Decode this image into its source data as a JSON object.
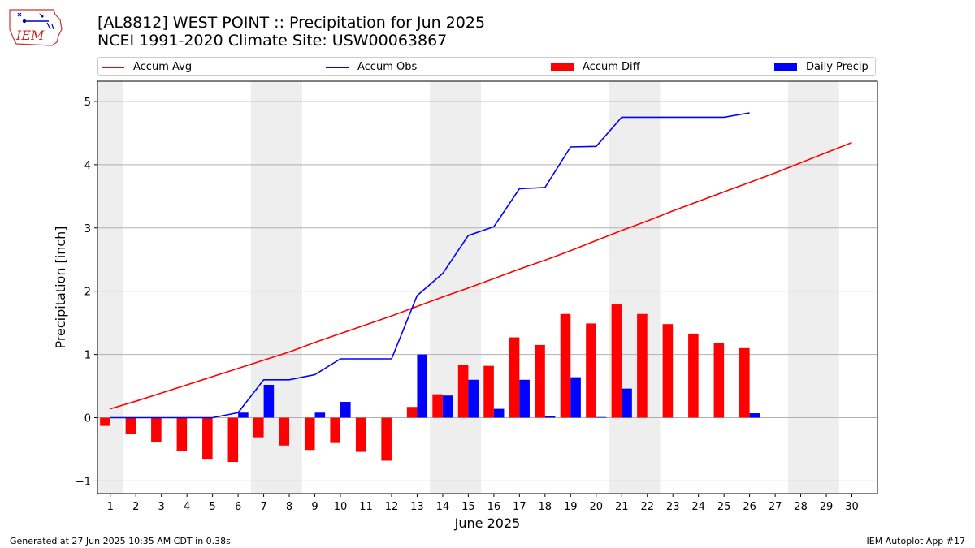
{
  "header": {
    "logo_text": "IEM",
    "title_line1": "[AL8812] WEST POINT :: Precipitation for Jun 2025",
    "title_line2": "NCEI 1991-2020 Climate Site: USW00063867"
  },
  "legend": [
    {
      "label": "Accum Avg",
      "color": "#ff0000",
      "kind": "line"
    },
    {
      "label": "Accum Obs",
      "color": "#0000ff",
      "kind": "line"
    },
    {
      "label": "Accum Diff",
      "color": "#ff0000",
      "kind": "bar"
    },
    {
      "label": "Daily Precip",
      "color": "#0000ff",
      "kind": "bar"
    }
  ],
  "footer": {
    "left": "Generated at 27 Jun 2025 10:35 AM CDT in 0.38s",
    "right": "IEM Autoplot App #17"
  },
  "chart_data": {
    "type": "bar",
    "xlabel": "June 2025",
    "ylabel": "Precipitation [inch]",
    "xlim": [
      0.5,
      31
    ],
    "ylim": [
      -1.2,
      5.32
    ],
    "yticks": [
      -1,
      0,
      1,
      2,
      3,
      4,
      5
    ],
    "xticks": [
      1,
      2,
      3,
      4,
      5,
      6,
      7,
      8,
      9,
      10,
      11,
      12,
      13,
      14,
      15,
      16,
      17,
      18,
      19,
      20,
      21,
      22,
      23,
      24,
      25,
      26,
      27,
      28,
      29,
      30
    ],
    "grid": "horizontal",
    "weekend_shading": [
      [
        0.5,
        1.5
      ],
      [
        6.5,
        8.5
      ],
      [
        13.5,
        15.5
      ],
      [
        20.5,
        22.5
      ],
      [
        27.5,
        29.5
      ]
    ],
    "weekend_color": "#eeeeee",
    "series": [
      {
        "name": "Accum Avg",
        "type": "line",
        "color": "#ff0000",
        "x": [
          1,
          2,
          3,
          4,
          5,
          6,
          7,
          8,
          9,
          10,
          11,
          12,
          13,
          14,
          15,
          16,
          17,
          18,
          19,
          20,
          21,
          22,
          23,
          24,
          25,
          26,
          27,
          28,
          29,
          30
        ],
        "values": [
          0.14,
          0.26,
          0.39,
          0.52,
          0.65,
          0.78,
          0.91,
          1.04,
          1.19,
          1.33,
          1.47,
          1.61,
          1.76,
          1.91,
          2.05,
          2.2,
          2.35,
          2.49,
          2.64,
          2.8,
          2.96,
          3.11,
          3.27,
          3.42,
          3.57,
          3.72,
          3.87,
          4.03,
          4.19,
          4.35
        ]
      },
      {
        "name": "Accum Obs",
        "type": "line",
        "color": "#0000ff",
        "x": [
          1,
          2,
          3,
          4,
          5,
          6,
          7,
          8,
          9,
          10,
          11,
          12,
          13,
          14,
          15,
          16,
          17,
          18,
          19,
          20,
          21,
          22,
          23,
          24,
          25,
          26
        ],
        "values": [
          0.0,
          0.0,
          0.0,
          0.0,
          0.0,
          0.08,
          0.6,
          0.6,
          0.68,
          0.93,
          0.93,
          0.93,
          1.93,
          2.28,
          2.88,
          3.02,
          3.62,
          3.64,
          4.28,
          4.29,
          4.75,
          4.75,
          4.75,
          4.75,
          4.75,
          4.82
        ]
      },
      {
        "name": "Accum Diff",
        "type": "bar",
        "color": "#ff0000",
        "x": [
          1,
          2,
          3,
          4,
          5,
          6,
          7,
          8,
          9,
          10,
          11,
          12,
          13,
          14,
          15,
          16,
          17,
          18,
          19,
          20,
          21,
          22,
          23,
          24,
          25,
          26
        ],
        "values": [
          -0.13,
          -0.26,
          -0.39,
          -0.52,
          -0.65,
          -0.7,
          -0.31,
          -0.44,
          -0.51,
          -0.4,
          -0.54,
          -0.68,
          0.17,
          0.37,
          0.83,
          0.82,
          1.27,
          1.15,
          1.64,
          1.49,
          1.79,
          1.64,
          1.48,
          1.33,
          1.18,
          1.1
        ]
      },
      {
        "name": "Daily Precip",
        "type": "bar",
        "color": "#0000ff",
        "x": [
          1,
          2,
          3,
          4,
          5,
          6,
          7,
          8,
          9,
          10,
          11,
          12,
          13,
          14,
          15,
          16,
          17,
          18,
          19,
          20,
          21,
          22,
          23,
          24,
          25,
          26
        ],
        "values": [
          0,
          0,
          0,
          0,
          0,
          0.08,
          0.52,
          0,
          0.08,
          0.25,
          0,
          0,
          1.0,
          0.35,
          0.6,
          0.14,
          0.6,
          0.02,
          0.64,
          0.01,
          0.46,
          0,
          0,
          0,
          0,
          0.07
        ]
      }
    ]
  }
}
